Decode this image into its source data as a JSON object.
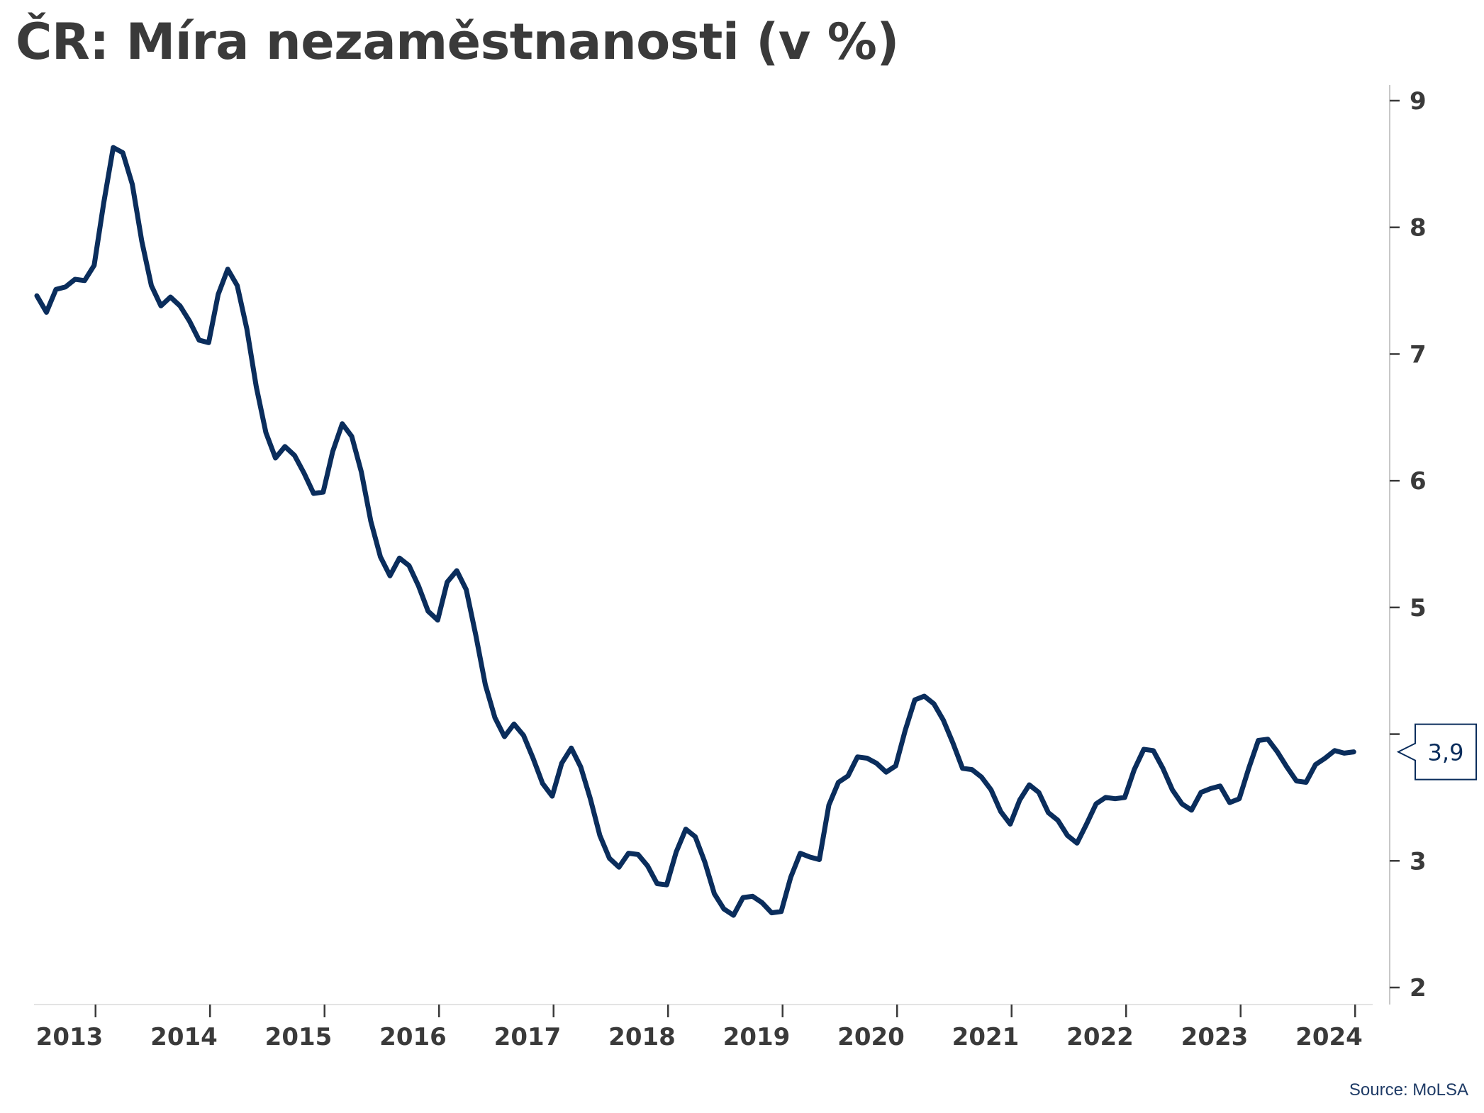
{
  "chart_data": {
    "type": "line",
    "title": "ČR: Míra nezaměstnanosti (v %)",
    "source": "Source: MoLSA",
    "ylim": [
      2,
      9
    ],
    "y_ticks": [
      "2",
      "3",
      "5",
      "6",
      "7",
      "8",
      "9"
    ],
    "x_ticks": [
      "2013",
      "2014",
      "2015",
      "2016",
      "2017",
      "2018",
      "2019",
      "2020",
      "2021",
      "2022",
      "2023",
      "2024"
    ],
    "last_value_label": "3,9",
    "axis_position": "right",
    "grid": false,
    "legend": "none",
    "line_color": "#0a2d5c",
    "series": [
      {
        "x_start": "2013-01",
        "frequency": "monthly",
        "values": [
          7.46,
          7.33,
          7.51,
          7.53,
          7.59,
          7.58,
          7.7,
          8.19,
          8.63,
          8.59,
          8.34,
          7.89,
          7.54,
          7.38,
          7.45,
          7.38,
          7.26,
          7.11,
          7.09,
          7.47,
          7.67,
          7.54,
          7.2,
          6.74,
          6.38,
          6.18,
          6.27,
          6.2,
          6.06,
          5.9,
          5.91,
          6.23,
          6.45,
          6.35,
          6.07,
          5.68,
          5.4,
          5.25,
          5.39,
          5.33,
          5.17,
          4.97,
          4.9,
          5.2,
          5.29,
          5.14,
          4.78,
          4.39,
          4.13,
          3.98,
          4.08,
          3.99,
          3.81,
          3.61,
          3.51,
          3.77,
          3.89,
          3.74,
          3.49,
          3.2,
          3.02,
          2.95,
          3.06,
          3.05,
          2.96,
          2.82,
          2.81,
          3.07,
          3.25,
          3.19,
          2.99,
          2.74,
          2.62,
          2.57,
          2.71,
          2.72,
          2.67,
          2.59,
          2.6,
          2.87,
          3.06,
          3.03,
          3.01,
          3.44,
          3.62,
          3.67,
          3.82,
          3.81,
          3.77,
          3.7,
          3.75,
          4.03,
          4.27,
          4.3,
          4.24,
          4.11,
          3.93,
          3.73,
          3.72,
          3.66,
          3.56,
          3.39,
          3.29,
          3.48,
          3.6,
          3.54,
          3.38,
          3.32,
          3.2,
          3.14,
          3.29,
          3.45,
          3.5,
          3.49,
          3.5,
          3.72,
          3.88,
          3.87,
          3.73,
          3.56,
          3.45,
          3.4,
          3.54,
          3.57,
          3.59,
          3.46,
          3.49,
          3.73,
          3.95,
          3.96,
          3.86,
          3.74,
          3.63,
          3.62,
          3.76,
          3.81,
          3.87,
          3.85,
          3.86
        ]
      }
    ]
  }
}
